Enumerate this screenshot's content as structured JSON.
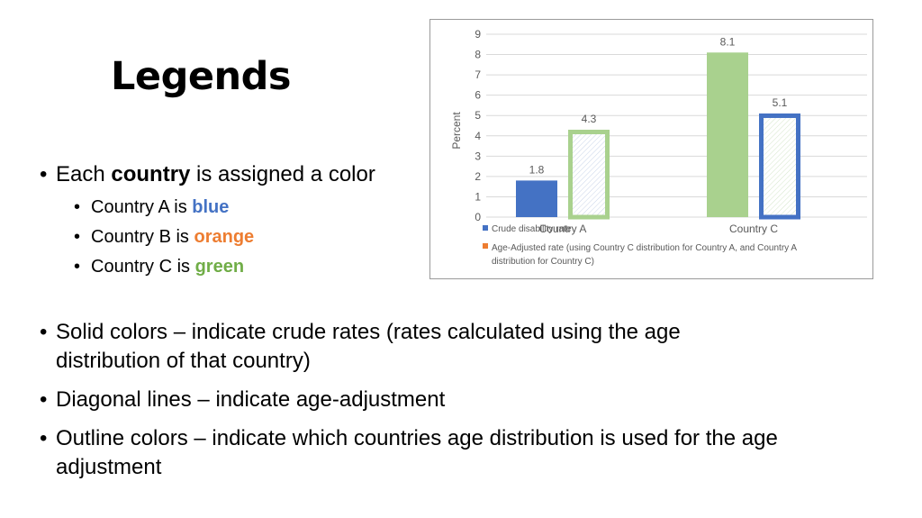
{
  "slide": {
    "title": "Legends",
    "bullets": [
      {
        "pre": "Each ",
        "bold": "country",
        "post": " is assigned a color"
      },
      {
        "pre": "Solid colors – indicate crude rates (rates calculated using the age",
        "cont": "distribution of that country)"
      },
      {
        "pre": "Diagonal lines – indicate age-adjustment"
      },
      {
        "pre": "Outline colors – indicate which countries age distribution is used for the age",
        "cont": "adjustment"
      }
    ],
    "sub_bullets": [
      {
        "pre": "Country A is ",
        "color_word": "blue"
      },
      {
        "pre": "Country B is ",
        "color_word": "orange"
      },
      {
        "pre": "Country C is ",
        "color_word": "green"
      }
    ],
    "bullet_char": "•"
  },
  "colors": {
    "blue": "#4472c4",
    "orange": "#ed7d31",
    "green": "#70ad47",
    "light_green": "#a9d18e"
  },
  "chart_data": {
    "type": "bar",
    "categories": [
      "Country A",
      "Country C"
    ],
    "series": [
      {
        "name": "Crude disability rate",
        "values": [
          1.8,
          8.1
        ],
        "fills": [
          "#4472c4",
          "#a9d18e"
        ],
        "pattern": "solid"
      },
      {
        "name": "Age-Adjusted rate (using Country C distribution for Country A, and Country A distribution for Country C)",
        "values": [
          4.3,
          5.1
        ],
        "outlines": [
          "#a9d18e",
          "#4472c4"
        ],
        "pattern": "diagonal"
      }
    ],
    "data_labels": [
      "1.8",
      "8.1",
      "4.3",
      "5.1"
    ],
    "ylabel": "Percent",
    "ylim": [
      0,
      9
    ],
    "yticks": [
      "0",
      "1",
      "2",
      "3",
      "4",
      "5",
      "6",
      "7",
      "8",
      "9"
    ],
    "grid": true,
    "legend_position": "bottom",
    "legend": {
      "item1": "Crude disability rate",
      "item2_line1": "Age-Adjusted rate (using Country C distribution for Country A, and Country A",
      "item2_line2": "distribution for Country C)"
    }
  }
}
